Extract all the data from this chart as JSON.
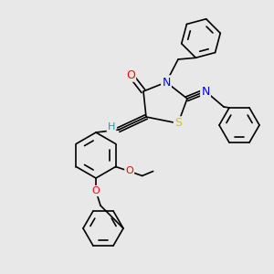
{
  "bg_color": "#e8e8e8",
  "bond_color": "#000000",
  "atom_colors": {
    "O": "#ff0000",
    "N": "#0000ff",
    "S": "#cccc00",
    "H": "#00aaaa",
    "C": "#000000"
  },
  "font_size": 8,
  "lw": 1.2
}
